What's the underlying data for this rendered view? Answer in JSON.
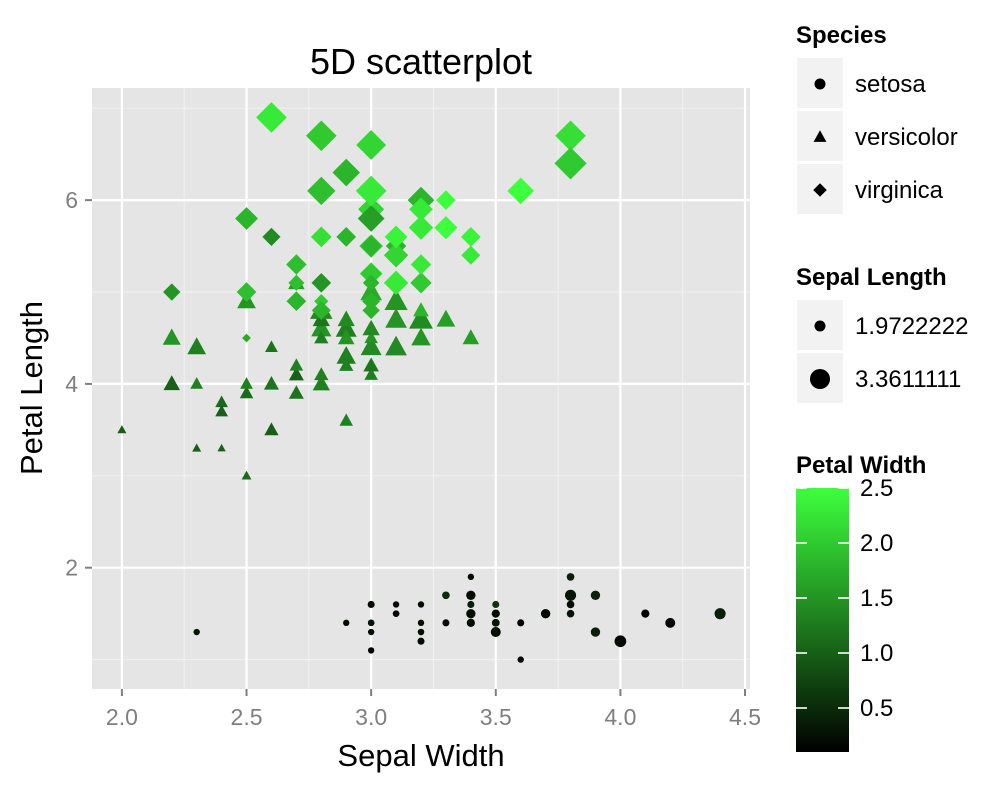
{
  "colors": {
    "panel_bg": "#e5e5e5",
    "gridline": "#ffffff",
    "legend_key_bg": "#f2f2f2",
    "low": "#000000",
    "high": "#3dff3d"
  },
  "chart_data": {
    "type": "scatter",
    "title": "5D scatterplot",
    "xlabel": "Sepal Width",
    "ylabel": "Petal Length",
    "xlim": [
      1.88,
      4.52
    ],
    "ylim": [
      0.68,
      7.22
    ],
    "x_ticks": [
      2.0,
      2.5,
      3.0,
      3.5,
      4.0,
      4.5
    ],
    "x_tick_labels": [
      "2.0",
      "2.5",
      "3.0",
      "3.5",
      "4.0",
      "4.5"
    ],
    "y_ticks": [
      2,
      4,
      6
    ],
    "y_tick_labels": [
      "2",
      "4",
      "6"
    ],
    "grid": true,
    "shape_legend": {
      "title": "Species",
      "entries": [
        {
          "label": "setosa",
          "shape": "circle"
        },
        {
          "label": "versicolor",
          "shape": "triangle"
        },
        {
          "label": "virginica",
          "shape": "diamond"
        }
      ]
    },
    "size_legend": {
      "title": "Sepal Length",
      "entries": [
        {
          "label": "1.9722222",
          "value": 1.9722222
        },
        {
          "label": "3.3611111",
          "value": 3.3611111
        }
      ]
    },
    "color_legend": {
      "title": "Petal Width",
      "range": [
        0.1,
        2.5
      ],
      "ticks": [
        0.5,
        1.0,
        1.5,
        2.0,
        2.5
      ],
      "tick_labels": [
        "0.5",
        "1.0",
        "1.5",
        "2.0",
        "2.5"
      ]
    },
    "series": [
      {
        "name": "setosa",
        "shape": "circle",
        "points": [
          [
            3.5,
            1.4,
            5.1,
            0.2
          ],
          [
            3.0,
            1.4,
            4.9,
            0.2
          ],
          [
            3.2,
            1.3,
            4.7,
            0.2
          ],
          [
            3.1,
            1.5,
            4.6,
            0.2
          ],
          [
            3.6,
            1.4,
            5.0,
            0.2
          ],
          [
            3.9,
            1.7,
            5.4,
            0.4
          ],
          [
            3.4,
            1.4,
            4.6,
            0.3
          ],
          [
            3.4,
            1.5,
            5.0,
            0.2
          ],
          [
            2.9,
            1.4,
            4.4,
            0.2
          ],
          [
            3.1,
            1.5,
            4.9,
            0.1
          ],
          [
            3.7,
            1.5,
            5.4,
            0.2
          ],
          [
            3.4,
            1.6,
            4.8,
            0.2
          ],
          [
            3.0,
            1.4,
            4.8,
            0.1
          ],
          [
            3.0,
            1.1,
            4.3,
            0.1
          ],
          [
            4.0,
            1.2,
            5.8,
            0.2
          ],
          [
            4.4,
            1.5,
            5.7,
            0.4
          ],
          [
            3.9,
            1.3,
            5.4,
            0.4
          ],
          [
            3.5,
            1.4,
            5.1,
            0.3
          ],
          [
            3.8,
            1.7,
            5.7,
            0.3
          ],
          [
            3.8,
            1.5,
            5.1,
            0.3
          ],
          [
            3.4,
            1.7,
            5.4,
            0.2
          ],
          [
            3.7,
            1.5,
            5.1,
            0.4
          ],
          [
            3.6,
            1.0,
            4.6,
            0.2
          ],
          [
            3.3,
            1.7,
            5.1,
            0.5
          ],
          [
            3.4,
            1.9,
            4.8,
            0.2
          ],
          [
            3.0,
            1.6,
            5.0,
            0.2
          ],
          [
            3.4,
            1.6,
            5.0,
            0.4
          ],
          [
            3.5,
            1.5,
            5.2,
            0.2
          ],
          [
            3.4,
            1.4,
            5.2,
            0.2
          ],
          [
            3.2,
            1.6,
            4.7,
            0.2
          ],
          [
            3.1,
            1.6,
            4.8,
            0.2
          ],
          [
            3.4,
            1.5,
            5.4,
            0.4
          ],
          [
            4.1,
            1.5,
            5.2,
            0.1
          ],
          [
            4.2,
            1.4,
            5.5,
            0.2
          ],
          [
            3.1,
            1.5,
            4.9,
            0.2
          ],
          [
            3.2,
            1.2,
            5.0,
            0.2
          ],
          [
            3.5,
            1.3,
            5.5,
            0.2
          ],
          [
            3.6,
            1.4,
            4.9,
            0.1
          ],
          [
            3.0,
            1.3,
            4.4,
            0.2
          ],
          [
            3.4,
            1.5,
            5.1,
            0.2
          ],
          [
            3.5,
            1.3,
            5.0,
            0.3
          ],
          [
            2.3,
            1.3,
            4.5,
            0.3
          ],
          [
            3.2,
            1.3,
            4.4,
            0.2
          ],
          [
            3.5,
            1.6,
            5.0,
            0.6
          ],
          [
            3.8,
            1.9,
            5.1,
            0.4
          ],
          [
            3.0,
            1.4,
            4.8,
            0.3
          ],
          [
            3.8,
            1.6,
            5.1,
            0.2
          ],
          [
            3.2,
            1.4,
            4.6,
            0.2
          ],
          [
            3.7,
            1.5,
            5.3,
            0.2
          ],
          [
            3.3,
            1.4,
            5.0,
            0.2
          ]
        ]
      },
      {
        "name": "versicolor",
        "shape": "triangle",
        "points": [
          [
            3.2,
            4.7,
            7.0,
            1.4
          ],
          [
            3.2,
            4.5,
            6.4,
            1.5
          ],
          [
            3.1,
            4.9,
            6.9,
            1.5
          ],
          [
            2.3,
            4.0,
            5.5,
            1.3
          ],
          [
            2.8,
            4.6,
            6.5,
            1.5
          ],
          [
            2.8,
            4.5,
            5.7,
            1.3
          ],
          [
            3.3,
            4.7,
            6.3,
            1.6
          ],
          [
            2.4,
            3.3,
            4.9,
            1.0
          ],
          [
            2.9,
            4.6,
            6.6,
            1.3
          ],
          [
            2.7,
            3.9,
            5.2,
            1.4
          ],
          [
            2.0,
            3.5,
            5.0,
            1.0
          ],
          [
            3.0,
            4.2,
            5.9,
            1.5
          ],
          [
            2.2,
            4.0,
            6.0,
            1.0
          ],
          [
            2.9,
            4.7,
            6.1,
            1.4
          ],
          [
            2.9,
            3.6,
            5.6,
            1.3
          ],
          [
            3.1,
            4.4,
            6.7,
            1.4
          ],
          [
            3.0,
            4.5,
            5.6,
            1.5
          ],
          [
            2.7,
            4.1,
            5.8,
            1.0
          ],
          [
            2.2,
            4.5,
            6.2,
            1.5
          ],
          [
            2.5,
            3.9,
            5.6,
            1.1
          ],
          [
            3.2,
            4.8,
            5.9,
            1.8
          ],
          [
            2.8,
            4.0,
            6.1,
            1.3
          ],
          [
            2.5,
            4.9,
            6.3,
            1.5
          ],
          [
            2.8,
            4.7,
            6.1,
            1.2
          ],
          [
            2.9,
            4.3,
            6.4,
            1.3
          ],
          [
            3.0,
            4.4,
            6.6,
            1.4
          ],
          [
            2.8,
            4.8,
            6.8,
            1.4
          ],
          [
            3.0,
            5.0,
            6.7,
            1.7
          ],
          [
            2.9,
            4.5,
            6.0,
            1.5
          ],
          [
            2.6,
            3.5,
            5.7,
            1.0
          ],
          [
            2.4,
            3.8,
            5.5,
            1.1
          ],
          [
            2.4,
            3.7,
            5.5,
            1.0
          ],
          [
            2.7,
            3.9,
            5.8,
            1.2
          ],
          [
            2.7,
            5.1,
            6.0,
            1.6
          ],
          [
            3.0,
            4.5,
            5.4,
            1.5
          ],
          [
            3.4,
            4.5,
            6.0,
            1.6
          ],
          [
            3.1,
            4.7,
            6.7,
            1.5
          ],
          [
            2.3,
            4.4,
            6.3,
            1.3
          ],
          [
            3.0,
            4.1,
            5.6,
            1.3
          ],
          [
            2.5,
            4.0,
            5.5,
            1.3
          ],
          [
            2.6,
            4.4,
            5.5,
            1.2
          ],
          [
            3.0,
            4.6,
            6.1,
            1.4
          ],
          [
            2.6,
            4.0,
            5.8,
            1.2
          ],
          [
            2.3,
            3.3,
            5.0,
            1.0
          ],
          [
            2.7,
            4.2,
            5.6,
            1.3
          ],
          [
            3.0,
            4.2,
            5.7,
            1.2
          ],
          [
            2.9,
            4.2,
            5.7,
            1.3
          ],
          [
            2.9,
            4.3,
            6.2,
            1.3
          ],
          [
            2.5,
            3.0,
            5.1,
            1.1
          ],
          [
            2.8,
            4.1,
            5.7,
            1.3
          ]
        ]
      },
      {
        "name": "virginica",
        "shape": "diamond",
        "points": [
          [
            3.3,
            6.0,
            6.3,
            2.5
          ],
          [
            2.7,
            5.1,
            5.8,
            1.9
          ],
          [
            3.0,
            5.9,
            7.1,
            2.1
          ],
          [
            2.9,
            5.6,
            6.3,
            1.8
          ],
          [
            3.0,
            5.8,
            6.5,
            2.2
          ],
          [
            3.0,
            6.6,
            7.6,
            2.1
          ],
          [
            2.5,
            4.5,
            4.9,
            1.7
          ],
          [
            2.9,
            6.3,
            7.3,
            1.8
          ],
          [
            2.5,
            5.8,
            6.7,
            1.8
          ],
          [
            3.6,
            6.1,
            7.2,
            2.5
          ],
          [
            3.2,
            5.1,
            6.5,
            2.0
          ],
          [
            2.7,
            5.3,
            6.4,
            1.9
          ],
          [
            3.0,
            5.5,
            6.8,
            2.1
          ],
          [
            2.5,
            5.0,
            5.7,
            2.0
          ],
          [
            2.8,
            5.1,
            5.8,
            2.4
          ],
          [
            3.2,
            5.3,
            6.4,
            2.3
          ],
          [
            3.0,
            5.5,
            6.5,
            1.8
          ],
          [
            3.8,
            6.7,
            7.7,
            2.2
          ],
          [
            2.6,
            6.9,
            7.7,
            2.3
          ],
          [
            2.2,
            5.0,
            6.0,
            1.5
          ],
          [
            3.2,
            5.7,
            6.9,
            2.3
          ],
          [
            2.8,
            4.9,
            5.6,
            2.0
          ],
          [
            2.8,
            6.7,
            7.7,
            2.0
          ],
          [
            2.7,
            4.9,
            6.3,
            1.8
          ],
          [
            3.3,
            5.7,
            6.7,
            2.1
          ],
          [
            3.2,
            6.0,
            7.2,
            1.8
          ],
          [
            2.8,
            4.8,
            6.2,
            1.8
          ],
          [
            3.0,
            4.9,
            6.1,
            1.8
          ],
          [
            2.8,
            5.6,
            6.4,
            2.1
          ],
          [
            3.0,
            5.8,
            7.2,
            1.6
          ],
          [
            2.8,
            6.1,
            7.4,
            1.9
          ],
          [
            3.8,
            6.4,
            7.9,
            2.0
          ],
          [
            2.8,
            5.6,
            6.4,
            2.2
          ],
          [
            2.8,
            5.1,
            6.3,
            1.5
          ],
          [
            2.6,
            5.6,
            6.1,
            1.4
          ],
          [
            3.0,
            6.1,
            7.7,
            2.3
          ],
          [
            3.4,
            5.6,
            6.3,
            2.4
          ],
          [
            3.1,
            5.5,
            6.4,
            1.8
          ],
          [
            3.0,
            4.8,
            6.0,
            1.8
          ],
          [
            3.1,
            5.4,
            6.9,
            2.1
          ],
          [
            3.1,
            5.6,
            6.7,
            2.4
          ],
          [
            3.1,
            5.1,
            6.9,
            2.3
          ],
          [
            2.7,
            5.1,
            5.8,
            1.9
          ],
          [
            3.2,
            5.9,
            6.8,
            2.3
          ],
          [
            3.3,
            5.7,
            6.7,
            2.5
          ],
          [
            3.0,
            5.2,
            6.7,
            2.3
          ],
          [
            2.5,
            5.0,
            6.3,
            1.9
          ],
          [
            3.0,
            5.2,
            6.5,
            2.0
          ],
          [
            3.4,
            5.4,
            6.2,
            2.3
          ],
          [
            3.0,
            5.1,
            5.9,
            1.8
          ]
        ]
      }
    ],
    "point_fields": [
      "sepal_width",
      "petal_length",
      "sepal_length",
      "petal_width"
    ]
  }
}
